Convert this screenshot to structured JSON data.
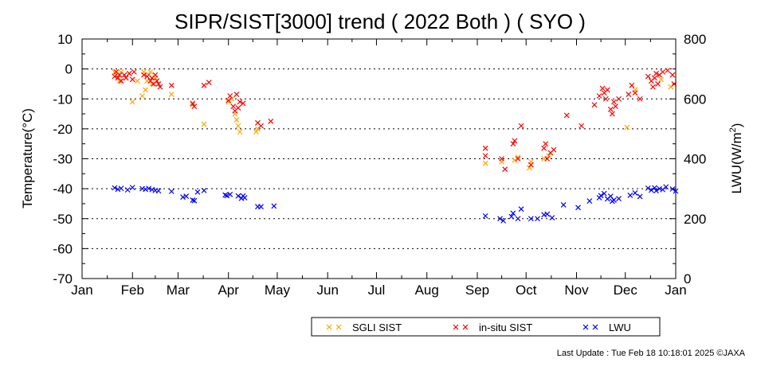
{
  "chart_data": {
    "type": "scatter",
    "title": "SIPR/SIST[3000] trend ( 2022 Both ) ( SYO )",
    "ylabel_left": "Temperature(°C)",
    "ylabel_right_main": "LWU(W/m",
    "ylabel_right_sup": "2",
    "ylabel_right_close": ")",
    "ylim_left": [
      -70,
      10
    ],
    "yticks_left": [
      10,
      0,
      -10,
      -20,
      -30,
      -40,
      -50,
      -60,
      -70
    ],
    "ylim_right": [
      0,
      800
    ],
    "yticks_right": [
      800,
      600,
      400,
      200,
      0
    ],
    "x_months": [
      "Jan",
      "Feb",
      "Mar",
      "Apr",
      "May",
      "Jun",
      "Jul",
      "Aug",
      "Sep",
      "Oct",
      "Nov",
      "Dec",
      "Jan"
    ],
    "xlim_days": [
      0,
      365
    ],
    "grid": true,
    "legend_position": "bottom-center",
    "marker": "x",
    "series": [
      {
        "name": "SGLI SIST",
        "color": "#ffa500",
        "axis": "left",
        "points": [
          [
            20,
            -1
          ],
          [
            21,
            -2
          ],
          [
            23,
            -4
          ],
          [
            24,
            -1
          ],
          [
            27,
            -3
          ],
          [
            31,
            -11
          ],
          [
            34,
            -4
          ],
          [
            37,
            -9
          ],
          [
            38,
            -1
          ],
          [
            39,
            -7
          ],
          [
            40,
            -4
          ],
          [
            41,
            -2
          ],
          [
            42,
            -1
          ],
          [
            43,
            -5
          ],
          [
            45,
            -3
          ],
          [
            55,
            -8.5
          ],
          [
            68,
            -12
          ],
          [
            75,
            -18.5
          ],
          [
            90,
            -11
          ],
          [
            92,
            -10
          ],
          [
            94,
            -15
          ],
          [
            95,
            -17
          ],
          [
            96,
            -19
          ],
          [
            97,
            -21
          ],
          [
            107,
            -21
          ],
          [
            108,
            -20
          ],
          [
            248,
            -31.5
          ],
          [
            258,
            -31
          ],
          [
            266,
            -30.5
          ],
          [
            268,
            -29.5
          ],
          [
            275,
            -33
          ],
          [
            276,
            -31
          ],
          [
            284,
            -30
          ],
          [
            287,
            -29
          ],
          [
            335,
            -19.5
          ],
          [
            340,
            -7
          ],
          [
            356,
            -3.5
          ],
          [
            362,
            -6
          ]
        ]
      },
      {
        "name": "in-situ SIST",
        "color": "#ff0000",
        "axis": "left",
        "points": [
          [
            20,
            -2.5
          ],
          [
            21,
            -1
          ],
          [
            22,
            -3
          ],
          [
            23,
            -2
          ],
          [
            24,
            -4
          ],
          [
            26,
            -2
          ],
          [
            27,
            -3
          ],
          [
            29,
            -1.5
          ],
          [
            31,
            -3.5
          ],
          [
            32,
            -1
          ],
          [
            38,
            -2
          ],
          [
            40,
            -2.5
          ],
          [
            42,
            -4
          ],
          [
            43,
            -3
          ],
          [
            44,
            -5
          ],
          [
            45,
            -2
          ],
          [
            46,
            -4
          ],
          [
            47,
            -5
          ],
          [
            48,
            -6
          ],
          [
            55,
            -5.5
          ],
          [
            68,
            -11.5
          ],
          [
            69,
            -12.5
          ],
          [
            75,
            -5.5
          ],
          [
            78,
            -4.5
          ],
          [
            90,
            -10.5
          ],
          [
            91,
            -9
          ],
          [
            93,
            -12.5
          ],
          [
            94,
            -14
          ],
          [
            95,
            -8.5
          ],
          [
            96,
            -13
          ],
          [
            97,
            -11
          ],
          [
            99,
            -11.5
          ],
          [
            108,
            -18
          ],
          [
            110,
            -19
          ],
          [
            116,
            -17.5
          ],
          [
            248,
            -26.5
          ],
          [
            248,
            -29
          ],
          [
            258,
            -30
          ],
          [
            260,
            -33.5
          ],
          [
            265,
            -25
          ],
          [
            266,
            -24
          ],
          [
            268,
            -30
          ],
          [
            270,
            -19
          ],
          [
            276,
            -32
          ],
          [
            284,
            -26.5
          ],
          [
            285,
            -25
          ],
          [
            286,
            -30
          ],
          [
            288,
            -28
          ],
          [
            290,
            -27
          ],
          [
            298,
            -15.5
          ],
          [
            307,
            -19
          ],
          [
            315,
            -12
          ],
          [
            318,
            -9
          ],
          [
            320,
            -6.5
          ],
          [
            321,
            -8
          ],
          [
            322,
            -10
          ],
          [
            323,
            -7
          ],
          [
            325,
            -13.5
          ],
          [
            326,
            -15
          ],
          [
            327,
            -11
          ],
          [
            328,
            -12.5
          ],
          [
            330,
            -10
          ],
          [
            336,
            -8.5
          ],
          [
            338,
            -5.5
          ],
          [
            340,
            -8
          ],
          [
            343,
            -10
          ],
          [
            348,
            -2.5
          ],
          [
            350,
            -4
          ],
          [
            351,
            -6
          ],
          [
            352,
            -3
          ],
          [
            353,
            -1.5
          ],
          [
            354,
            -5
          ],
          [
            355,
            -2
          ],
          [
            357,
            -1
          ],
          [
            360,
            -0.5
          ],
          [
            363,
            -2
          ],
          [
            364,
            -5
          ]
        ]
      },
      {
        "name": "LWU",
        "color": "#0000ff",
        "axis": "right",
        "points": [
          [
            20,
            303
          ],
          [
            22,
            298
          ],
          [
            24,
            301
          ],
          [
            28,
            296
          ],
          [
            31,
            304
          ],
          [
            37,
            300
          ],
          [
            39,
            298
          ],
          [
            41,
            301
          ],
          [
            43,
            297
          ],
          [
            45,
            294
          ],
          [
            47,
            293
          ],
          [
            55,
            291
          ],
          [
            62,
            272
          ],
          [
            64,
            275
          ],
          [
            68,
            262
          ],
          [
            69,
            260
          ],
          [
            71,
            289
          ],
          [
            75,
            294
          ],
          [
            88,
            279
          ],
          [
            89,
            277
          ],
          [
            91,
            281
          ],
          [
            96,
            276
          ],
          [
            98,
            268
          ],
          [
            99,
            276
          ],
          [
            100,
            270
          ],
          [
            108,
            240
          ],
          [
            110,
            240
          ],
          [
            118,
            242
          ],
          [
            248,
            209
          ],
          [
            257,
            200
          ],
          [
            259,
            193
          ],
          [
            264,
            207
          ],
          [
            265,
            218
          ],
          [
            268,
            200
          ],
          [
            270,
            232
          ],
          [
            276,
            200
          ],
          [
            280,
            200
          ],
          [
            284,
            213
          ],
          [
            286,
            215
          ],
          [
            289,
            203
          ],
          [
            296,
            246
          ],
          [
            305,
            237
          ],
          [
            312,
            259
          ],
          [
            318,
            270
          ],
          [
            319,
            277
          ],
          [
            321,
            284
          ],
          [
            323,
            266
          ],
          [
            325,
            275
          ],
          [
            326,
            258
          ],
          [
            327,
            262
          ],
          [
            330,
            267
          ],
          [
            337,
            278
          ],
          [
            340,
            286
          ],
          [
            343,
            274
          ],
          [
            348,
            302
          ],
          [
            350,
            295
          ],
          [
            352,
            303
          ],
          [
            353,
            293
          ],
          [
            355,
            300
          ],
          [
            357,
            297
          ],
          [
            359,
            306
          ],
          [
            363,
            299
          ],
          [
            365,
            292
          ]
        ]
      }
    ]
  },
  "footer": {
    "last_update": "Last Update : Tue Feb 18 10:18:01 2025  ©JAXA"
  }
}
